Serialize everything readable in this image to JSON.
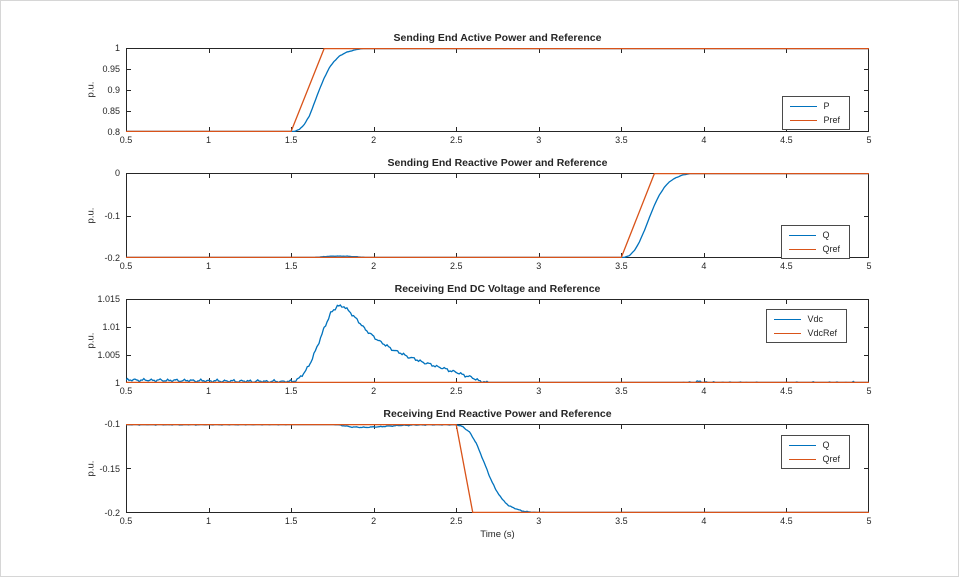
{
  "figure": {
    "background": "#ffffff",
    "axis_color": "#262626"
  },
  "colors": {
    "series_blue": "#0072BD",
    "series_orange": "#D95319"
  },
  "chart_data": [
    {
      "type": "line",
      "title": "Sending End Active Power and Reference",
      "ylabel": "p.u.",
      "xlabel": "",
      "xlim": [
        0.5,
        5
      ],
      "ylim": [
        0.8,
        1.0
      ],
      "xticks": [
        0.5,
        1,
        1.5,
        2,
        2.5,
        3,
        3.5,
        4,
        4.5,
        5
      ],
      "xtick_labels": [
        "0.5",
        "1",
        "1.5",
        "2",
        "2.5",
        "3",
        "3.5",
        "4",
        "4.5",
        "5"
      ],
      "yticks": [
        1,
        0.95,
        0.9,
        0.85,
        0.8
      ],
      "ytick_labels": [
        "1",
        "0.95",
        "0.9",
        "0.85",
        "0.8"
      ],
      "grid": false,
      "legend": {
        "position": "top-right-inside",
        "top": 95,
        "right": 108,
        "entries": [
          "P",
          "Pref"
        ]
      },
      "series": [
        {
          "name": "P",
          "color": "#0072BD",
          "ripple": 0.0006,
          "points": [
            [
              0.5,
              0.8
            ],
            [
              1.51,
              0.8
            ],
            [
              1.55,
              0.806
            ],
            [
              1.58,
              0.818
            ],
            [
              1.61,
              0.838
            ],
            [
              1.64,
              0.868
            ],
            [
              1.67,
              0.9
            ],
            [
              1.7,
              0.928
            ],
            [
              1.73,
              0.952
            ],
            [
              1.76,
              0.968
            ],
            [
              1.79,
              0.98
            ],
            [
              1.83,
              0.989
            ],
            [
              1.87,
              0.994
            ],
            [
              1.92,
              0.998
            ],
            [
              1.97,
              1.0
            ],
            [
              5,
              1.0
            ]
          ]
        },
        {
          "name": "Pref",
          "color": "#D95319",
          "ripple": 0,
          "points": [
            [
              0.5,
              0.8
            ],
            [
              1.5,
              0.8
            ],
            [
              1.7,
              1.0
            ],
            [
              5,
              1.0
            ]
          ]
        }
      ]
    },
    {
      "type": "line",
      "title": "Sending End Reactive Power and Reference",
      "ylabel": "p.u.",
      "xlabel": "",
      "xlim": [
        0.5,
        5
      ],
      "ylim": [
        -0.2,
        0
      ],
      "xticks": [
        0.5,
        1,
        1.5,
        2,
        2.5,
        3,
        3.5,
        4,
        4.5,
        5
      ],
      "xtick_labels": [
        "0.5",
        "1",
        "1.5",
        "2",
        "2.5",
        "3",
        "3.5",
        "4",
        "4.5",
        "5"
      ],
      "yticks": [
        0,
        -0.1,
        -0.2
      ],
      "ytick_labels": [
        "0",
        "-0.1",
        "-0.2"
      ],
      "grid": false,
      "legend": {
        "position": "middle-right-inside",
        "top": 224,
        "right": 108,
        "entries": [
          "Q",
          "Qref"
        ]
      },
      "series": [
        {
          "name": "Q",
          "color": "#0072BD",
          "ripple": 0.0005,
          "points": [
            [
              0.5,
              -0.2
            ],
            [
              1.6,
              -0.2
            ],
            [
              1.66,
              -0.198
            ],
            [
              1.72,
              -0.1962
            ],
            [
              1.78,
              -0.1955
            ],
            [
              1.84,
              -0.1958
            ],
            [
              1.9,
              -0.1972
            ],
            [
              1.96,
              -0.199
            ],
            [
              2.02,
              -0.2
            ],
            [
              3.51,
              -0.2
            ],
            [
              3.55,
              -0.194
            ],
            [
              3.58,
              -0.182
            ],
            [
              3.61,
              -0.162
            ],
            [
              3.64,
              -0.135
            ],
            [
              3.67,
              -0.105
            ],
            [
              3.7,
              -0.076
            ],
            [
              3.73,
              -0.052
            ],
            [
              3.76,
              -0.034
            ],
            [
              3.79,
              -0.021
            ],
            [
              3.83,
              -0.011
            ],
            [
              3.87,
              -0.005
            ],
            [
              3.92,
              -0.001
            ],
            [
              3.97,
              0
            ],
            [
              5,
              0
            ]
          ]
        },
        {
          "name": "Qref",
          "color": "#D95319",
          "ripple": 0,
          "points": [
            [
              0.5,
              -0.2
            ],
            [
              3.5,
              -0.2
            ],
            [
              3.7,
              0
            ],
            [
              5,
              0
            ]
          ]
        }
      ]
    },
    {
      "type": "line",
      "title": "Receiving End DC Voltage and Reference",
      "ylabel": "p.u.",
      "xlabel": "",
      "xlim": [
        0.5,
        5
      ],
      "ylim": [
        1.0,
        1.015
      ],
      "xticks": [
        0.5,
        1,
        1.5,
        2,
        2.5,
        3,
        3.5,
        4,
        4.5,
        5
      ],
      "xtick_labels": [
        "0.5",
        "1",
        "1.5",
        "2",
        "2.5",
        "3",
        "3.5",
        "4",
        "4.5",
        "5"
      ],
      "yticks": [
        1.015,
        1.01,
        1.005,
        1
      ],
      "ytick_labels": [
        "1.015",
        "1.01",
        "1.005",
        "1"
      ],
      "grid": false,
      "legend": {
        "position": "top-right-inside",
        "top": 308,
        "right": 111,
        "entries": [
          "Vdc",
          "VdcRef"
        ]
      },
      "series": [
        {
          "name": "Vdc",
          "color": "#0072BD",
          "ripple": 0.00032,
          "points": [
            [
              0.5,
              1.00055
            ],
            [
              0.8,
              1.00045
            ],
            [
              1.1,
              1.00035
            ],
            [
              1.5,
              1.00025
            ],
            [
              1.54,
              1.0006
            ],
            [
              1.58,
              1.0018
            ],
            [
              1.62,
              1.0038
            ],
            [
              1.66,
              1.0066
            ],
            [
              1.7,
              1.0098
            ],
            [
              1.74,
              1.0124
            ],
            [
              1.78,
              1.0138
            ],
            [
              1.82,
              1.0136
            ],
            [
              1.86,
              1.0126
            ],
            [
              1.9,
              1.0112
            ],
            [
              1.95,
              1.0096
            ],
            [
              2.0,
              1.0082
            ],
            [
              2.1,
              1.0062
            ],
            [
              2.2,
              1.0048
            ],
            [
              2.3,
              1.0037
            ],
            [
              2.4,
              1.0028
            ],
            [
              2.5,
              1.0019
            ],
            [
              2.6,
              1.0009
            ],
            [
              2.65,
              1.0003
            ],
            [
              2.7,
              0.9999
            ],
            [
              3.0,
              0.9998
            ],
            [
              3.4,
              0.9997
            ],
            [
              3.7,
              0.9996
            ],
            [
              3.85,
              0.9998
            ],
            [
              3.95,
              1.0002
            ],
            [
              4.05,
              1.0
            ],
            [
              4.5,
              0.9999
            ],
            [
              5,
              1.0
            ]
          ]
        },
        {
          "name": "VdcRef",
          "color": "#D95319",
          "ripple": 0,
          "points": [
            [
              0.5,
              1.0
            ],
            [
              5,
              1.0
            ]
          ]
        }
      ]
    },
    {
      "type": "line",
      "title": "Receiving End Reactive Power and Reference",
      "ylabel": "p.u.",
      "xlabel": "Time (s)",
      "xlim": [
        0.5,
        5
      ],
      "ylim": [
        -0.2,
        -0.1
      ],
      "xticks": [
        0.5,
        1,
        1.5,
        2,
        2.5,
        3,
        3.5,
        4,
        4.5,
        5
      ],
      "xtick_labels": [
        "0.5",
        "1",
        "1.5",
        "2",
        "2.5",
        "3",
        "3.5",
        "4",
        "4.5",
        "5"
      ],
      "yticks": [
        -0.1,
        -0.15,
        -0.2
      ],
      "ytick_labels": [
        "-0.1",
        "-0.15",
        "-0.2"
      ],
      "grid": false,
      "legend": {
        "position": "top-right-inside",
        "top": 434,
        "right": 108,
        "entries": [
          "Q",
          "Qref"
        ]
      },
      "series": [
        {
          "name": "Q",
          "color": "#0072BD",
          "ripple": 0.0006,
          "points": [
            [
              0.5,
              -0.1008
            ],
            [
              1.0,
              -0.1008
            ],
            [
              1.5,
              -0.1005
            ],
            [
              1.58,
              -0.0992
            ],
            [
              1.66,
              -0.0988
            ],
            [
              1.74,
              -0.0995
            ],
            [
              1.8,
              -0.1015
            ],
            [
              1.86,
              -0.1032
            ],
            [
              1.92,
              -0.1038
            ],
            [
              1.98,
              -0.1036
            ],
            [
              2.06,
              -0.1028
            ],
            [
              2.14,
              -0.1018
            ],
            [
              2.24,
              -0.1012
            ],
            [
              2.36,
              -0.1008
            ],
            [
              2.5,
              -0.1008
            ],
            [
              2.54,
              -0.103
            ],
            [
              2.58,
              -0.109
            ],
            [
              2.62,
              -0.121
            ],
            [
              2.66,
              -0.139
            ],
            [
              2.7,
              -0.158
            ],
            [
              2.74,
              -0.174
            ],
            [
              2.78,
              -0.185
            ],
            [
              2.82,
              -0.192
            ],
            [
              2.87,
              -0.196
            ],
            [
              2.92,
              -0.1985
            ],
            [
              3.0,
              -0.1995
            ],
            [
              3.1,
              -0.2
            ],
            [
              5,
              -0.2
            ]
          ]
        },
        {
          "name": "Qref",
          "color": "#D95319",
          "ripple": 0,
          "points": [
            [
              0.5,
              -0.1
            ],
            [
              2.5,
              -0.1
            ],
            [
              2.6,
              -0.2
            ],
            [
              5,
              -0.2
            ]
          ]
        }
      ]
    }
  ]
}
